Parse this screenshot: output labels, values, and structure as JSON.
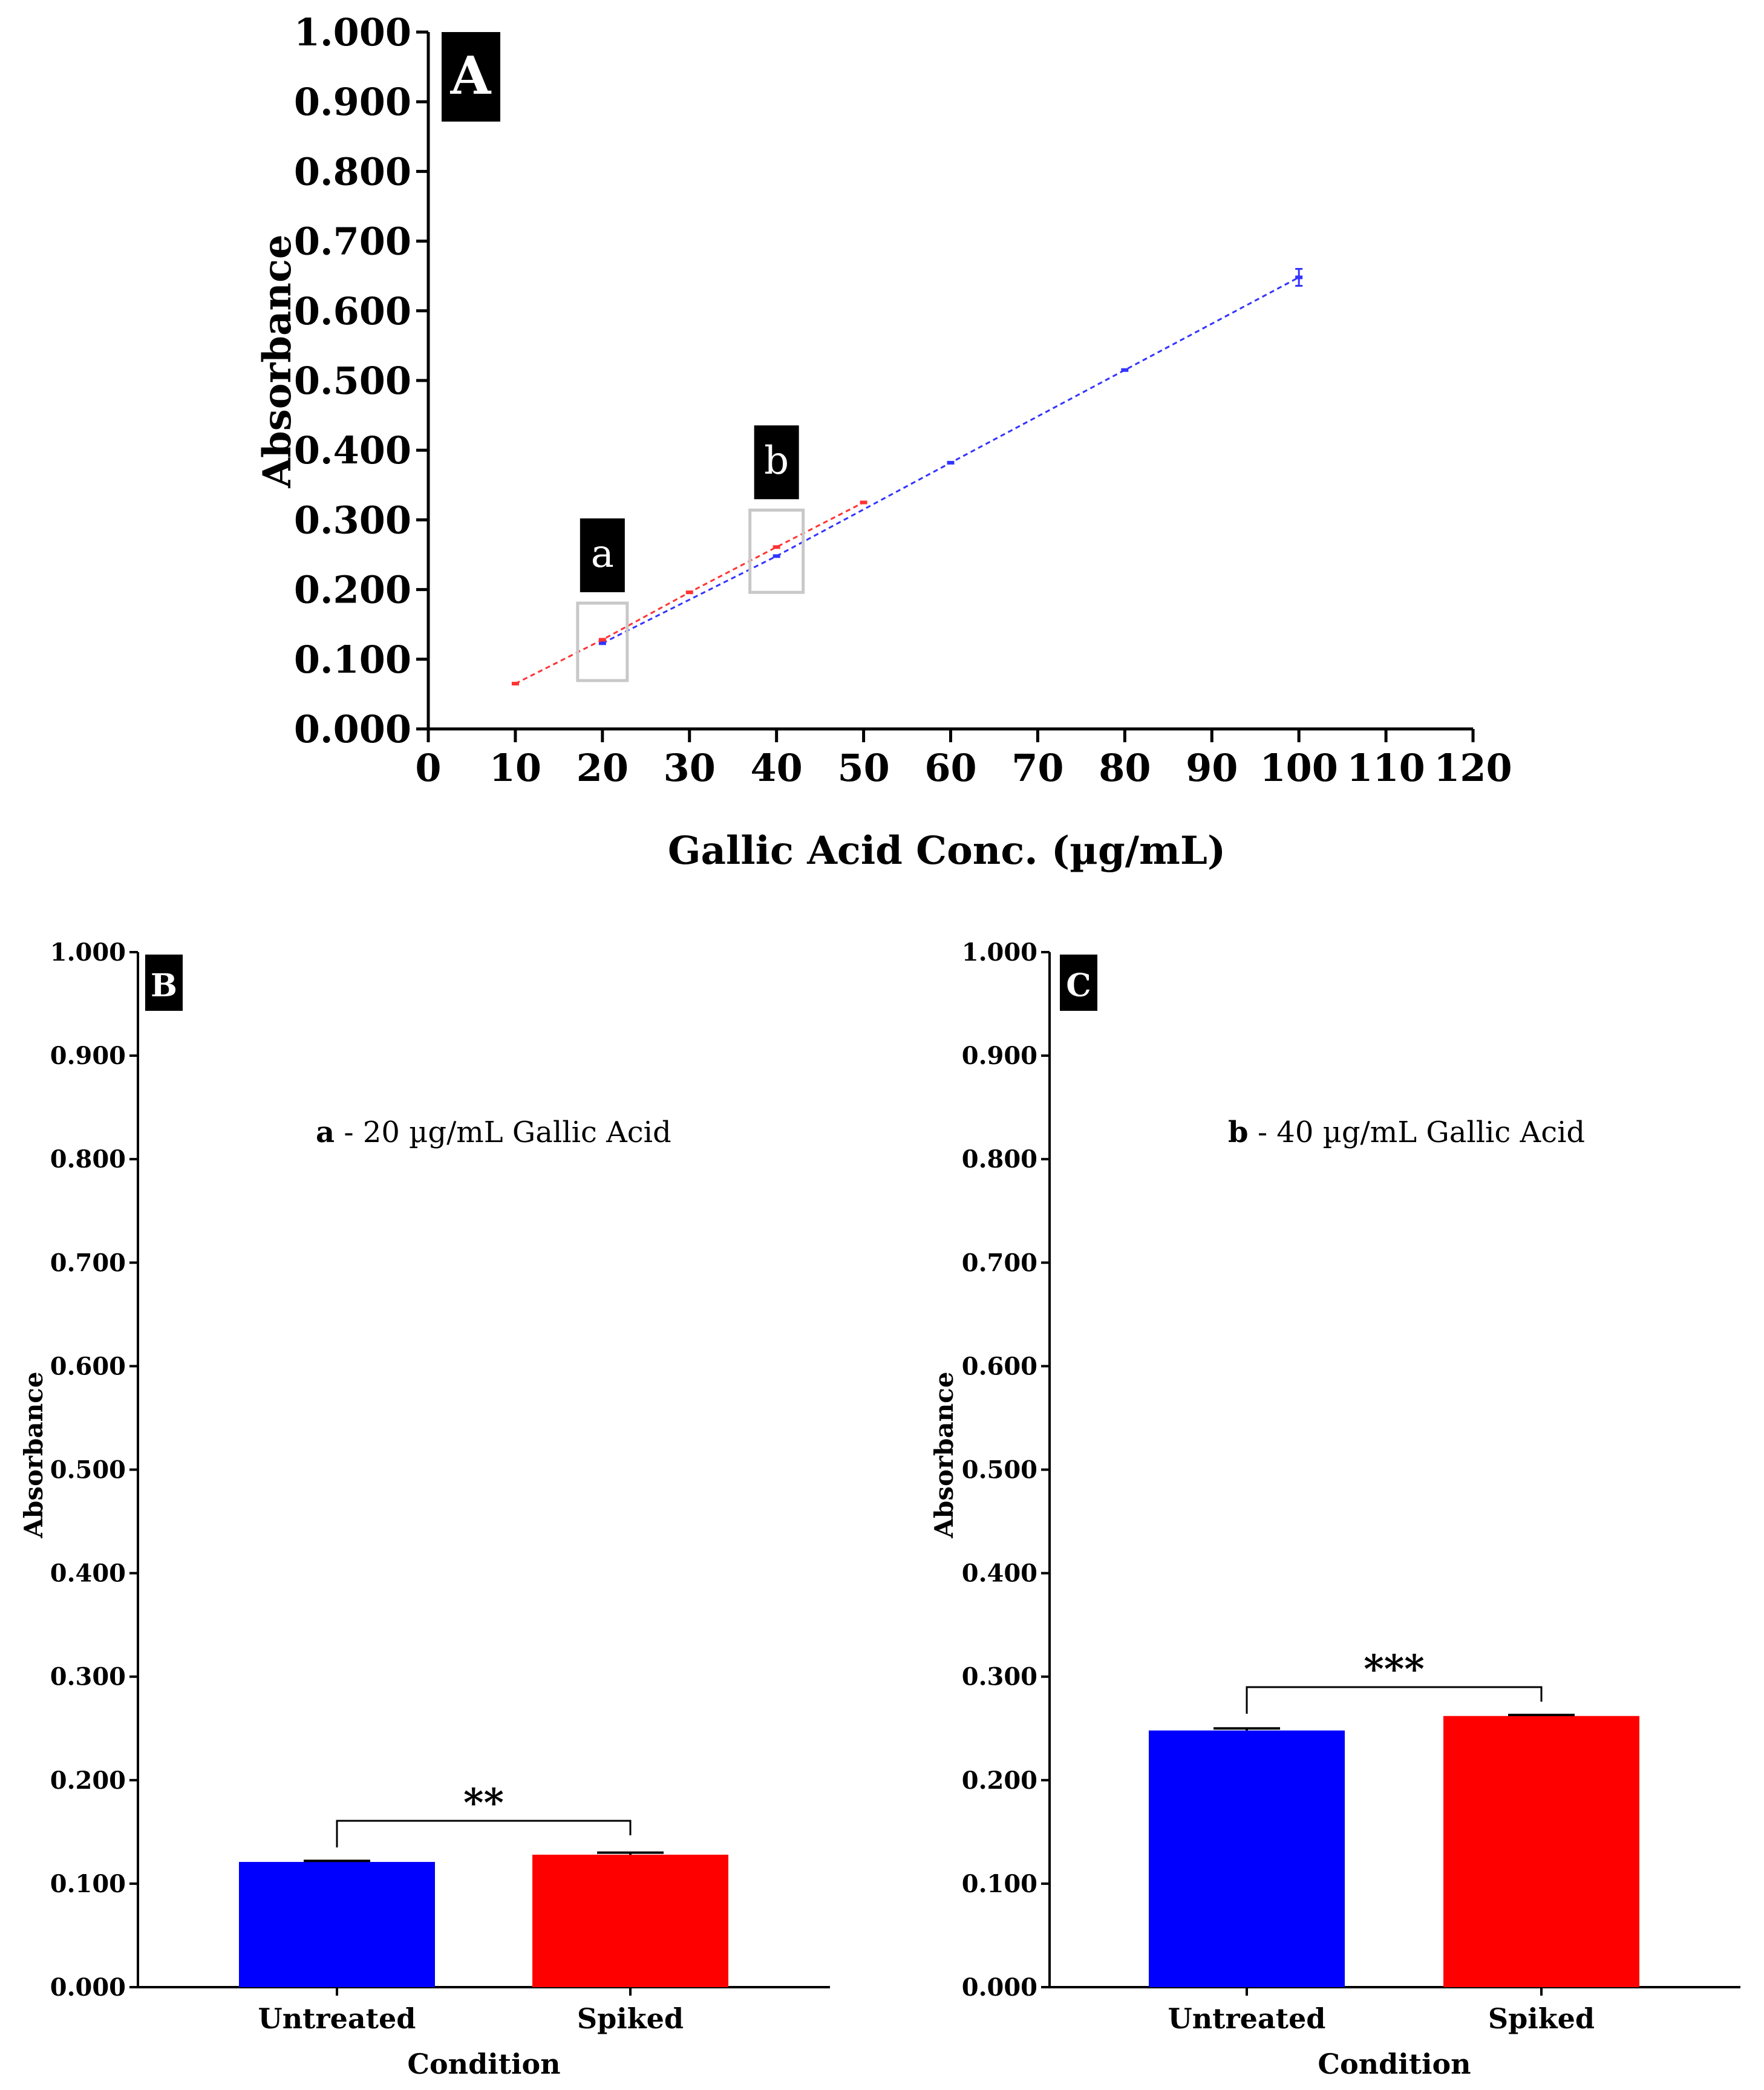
{
  "chart_data": [
    {
      "panel": "A",
      "type": "line",
      "xlabel": "Gallic Acid Conc. (µg/mL)",
      "ylabel": "Absorbance",
      "xlim": [
        0,
        120
      ],
      "ylim": [
        0,
        1.0
      ],
      "xticks": [
        "0",
        "10",
        "20",
        "30",
        "40",
        "50",
        "60",
        "70",
        "80",
        "90",
        "100",
        "110",
        "120"
      ],
      "yticks": [
        "0.000",
        "0.100",
        "0.200",
        "0.300",
        "0.400",
        "0.500",
        "0.600",
        "0.700",
        "0.800",
        "0.900",
        "1.000"
      ],
      "series": [
        {
          "name": "blue",
          "color": "#3333ff",
          "x": [
            20,
            40,
            60,
            80,
            100
          ],
          "y": [
            0.123,
            0.248,
            0.382,
            0.515,
            0.648
          ]
        },
        {
          "name": "red",
          "color": "#ff3333",
          "x": [
            10,
            20,
            30,
            40,
            50
          ],
          "y": [
            0.065,
            0.128,
            0.196,
            0.261,
            0.325
          ]
        }
      ],
      "annotations": [
        {
          "label": "a",
          "x": 20
        },
        {
          "label": "b",
          "x": 40
        }
      ]
    },
    {
      "panel": "B",
      "type": "bar",
      "title_bold": "a",
      "title_rest": " - 20 µg/mL Gallic  Acid",
      "xlabel": "Condition",
      "ylabel": "Absorbance",
      "ylim": [
        0,
        1.0
      ],
      "yticks": [
        "0.000",
        "0.100",
        "0.200",
        "0.300",
        "0.400",
        "0.500",
        "0.600",
        "0.700",
        "0.800",
        "0.900",
        "1.000"
      ],
      "categories": [
        "Untreated",
        "Spiked"
      ],
      "values": [
        0.121,
        0.128
      ],
      "errors": [
        0.001,
        0.002
      ],
      "colors": [
        "#0000ff",
        "#ff0000"
      ],
      "significance": "**"
    },
    {
      "panel": "C",
      "type": "bar",
      "title_bold": "b",
      "title_rest": " - 40 µg/mL Gallic  Acid",
      "xlabel": "Condition",
      "ylabel": "Absorbance",
      "ylim": [
        0,
        1.0
      ],
      "yticks": [
        "0.000",
        "0.100",
        "0.200",
        "0.300",
        "0.400",
        "0.500",
        "0.600",
        "0.700",
        "0.800",
        "0.900",
        "1.000"
      ],
      "categories": [
        "Untreated",
        "Spiked"
      ],
      "values": [
        0.248,
        0.262
      ],
      "errors": [
        0.002,
        0.001
      ],
      "colors": [
        "#0000ff",
        "#ff0000"
      ],
      "significance": "***"
    }
  ]
}
